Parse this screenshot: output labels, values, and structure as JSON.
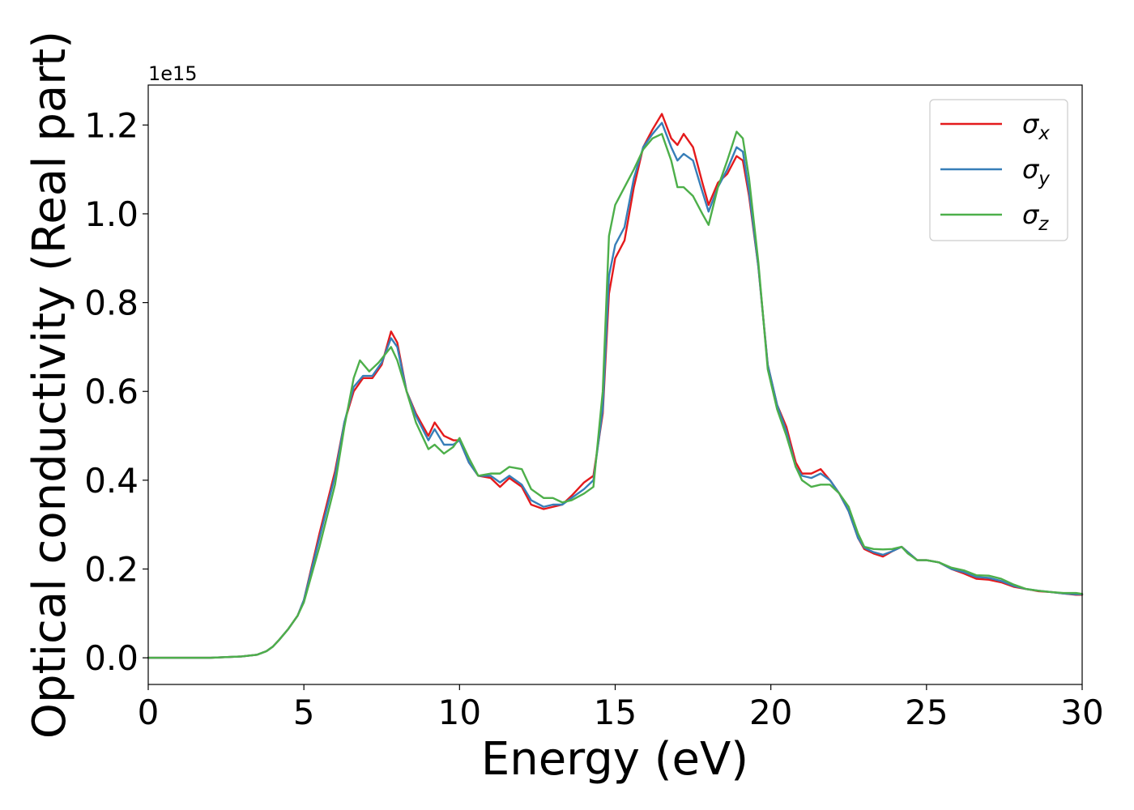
{
  "chart_data": {
    "type": "line",
    "xlabel": "Energy (eV)",
    "ylabel": "Optical conductivity (Real part)",
    "y_offset_label": "1e15",
    "xlim": [
      0,
      30
    ],
    "ylim": [
      -0.06,
      1.29
    ],
    "y_scale_factor": 1000000000000000.0,
    "x_ticks": [
      0,
      5,
      10,
      15,
      20,
      25,
      30
    ],
    "x_tick_labels": [
      "0",
      "5",
      "10",
      "15",
      "20",
      "25",
      "30"
    ],
    "y_ticks": [
      0.0,
      0.2,
      0.4,
      0.6,
      0.8,
      1.0,
      1.2
    ],
    "y_tick_labels": [
      "0.0",
      "0.2",
      "0.4",
      "0.6",
      "0.8",
      "1.0",
      "1.2"
    ],
    "grid": false,
    "legend_position": "top-right",
    "series": [
      {
        "name": "σx",
        "legend_base": "σ",
        "legend_sub": "x",
        "color": "#e41a1c",
        "x": [
          0,
          1,
          2,
          3,
          3.5,
          3.8,
          4.0,
          4.2,
          4.5,
          4.8,
          5.0,
          5.5,
          6.0,
          6.3,
          6.6,
          6.9,
          7.2,
          7.5,
          7.8,
          8.0,
          8.3,
          8.6,
          9.0,
          9.2,
          9.5,
          9.8,
          10.0,
          10.3,
          10.6,
          11.0,
          11.3,
          11.6,
          12.0,
          12.3,
          12.7,
          13.0,
          13.3,
          13.6,
          14.0,
          14.3,
          14.6,
          14.8,
          15.0,
          15.3,
          15.6,
          15.9,
          16.2,
          16.5,
          16.8,
          17.0,
          17.2,
          17.5,
          17.8,
          18.0,
          18.3,
          18.6,
          18.9,
          19.1,
          19.3,
          19.6,
          19.9,
          20.2,
          20.5,
          20.8,
          21.0,
          21.3,
          21.6,
          21.9,
          22.2,
          22.5,
          22.8,
          23.0,
          23.3,
          23.6,
          23.9,
          24.2,
          24.4,
          24.7,
          25.0,
          25.4,
          25.8,
          26.2,
          26.6,
          27.0,
          27.4,
          27.8,
          28.2,
          28.6,
          29.0,
          29.4,
          29.8,
          30.0
        ],
        "y": [
          0.0,
          0.0,
          0.0,
          0.003,
          0.007,
          0.015,
          0.025,
          0.04,
          0.065,
          0.095,
          0.13,
          0.28,
          0.42,
          0.53,
          0.6,
          0.63,
          0.63,
          0.66,
          0.735,
          0.71,
          0.6,
          0.55,
          0.5,
          0.53,
          0.5,
          0.49,
          0.49,
          0.44,
          0.41,
          0.405,
          0.385,
          0.405,
          0.385,
          0.345,
          0.335,
          0.34,
          0.345,
          0.365,
          0.395,
          0.41,
          0.55,
          0.82,
          0.9,
          0.94,
          1.06,
          1.15,
          1.19,
          1.225,
          1.17,
          1.155,
          1.18,
          1.15,
          1.07,
          1.02,
          1.07,
          1.09,
          1.13,
          1.12,
          1.04,
          0.88,
          0.66,
          0.57,
          0.52,
          0.44,
          0.415,
          0.415,
          0.425,
          0.4,
          0.37,
          0.33,
          0.27,
          0.245,
          0.235,
          0.228,
          0.24,
          0.25,
          0.238,
          0.22,
          0.22,
          0.215,
          0.2,
          0.19,
          0.178,
          0.176,
          0.17,
          0.16,
          0.155,
          0.15,
          0.148,
          0.145,
          0.142,
          0.142
        ]
      },
      {
        "name": "σy",
        "legend_base": "σ",
        "legend_sub": "y",
        "color": "#377eb8",
        "x": [
          0,
          1,
          2,
          3,
          3.5,
          3.8,
          4.0,
          4.2,
          4.5,
          4.8,
          5.0,
          5.5,
          6.0,
          6.3,
          6.6,
          6.9,
          7.2,
          7.5,
          7.8,
          8.0,
          8.3,
          8.6,
          9.0,
          9.2,
          9.5,
          9.8,
          10.0,
          10.3,
          10.6,
          11.0,
          11.3,
          11.6,
          12.0,
          12.3,
          12.7,
          13.0,
          13.3,
          13.6,
          14.0,
          14.3,
          14.6,
          14.8,
          15.0,
          15.3,
          15.6,
          15.9,
          16.2,
          16.5,
          16.8,
          17.0,
          17.2,
          17.5,
          17.8,
          18.0,
          18.3,
          18.6,
          18.9,
          19.1,
          19.3,
          19.6,
          19.9,
          20.2,
          20.5,
          20.8,
          21.0,
          21.3,
          21.6,
          21.9,
          22.2,
          22.5,
          22.8,
          23.0,
          23.3,
          23.6,
          23.9,
          24.2,
          24.4,
          24.7,
          25.0,
          25.4,
          25.8,
          26.2,
          26.6,
          27.0,
          27.4,
          27.8,
          28.2,
          28.6,
          29.0,
          29.4,
          29.8,
          30.0
        ],
        "y": [
          0.0,
          0.0,
          0.0,
          0.003,
          0.007,
          0.015,
          0.025,
          0.04,
          0.065,
          0.095,
          0.13,
          0.27,
          0.41,
          0.53,
          0.61,
          0.635,
          0.635,
          0.665,
          0.72,
          0.7,
          0.6,
          0.545,
          0.49,
          0.515,
          0.48,
          0.48,
          0.49,
          0.44,
          0.41,
          0.41,
          0.395,
          0.41,
          0.39,
          0.355,
          0.34,
          0.345,
          0.345,
          0.36,
          0.38,
          0.4,
          0.56,
          0.86,
          0.93,
          0.97,
          1.08,
          1.15,
          1.18,
          1.205,
          1.15,
          1.12,
          1.135,
          1.12,
          1.05,
          1.005,
          1.06,
          1.1,
          1.15,
          1.14,
          1.05,
          0.88,
          0.66,
          0.57,
          0.51,
          0.43,
          0.41,
          0.405,
          0.415,
          0.4,
          0.37,
          0.33,
          0.27,
          0.248,
          0.238,
          0.232,
          0.24,
          0.25,
          0.238,
          0.22,
          0.22,
          0.215,
          0.2,
          0.193,
          0.182,
          0.18,
          0.173,
          0.162,
          0.155,
          0.151,
          0.148,
          0.145,
          0.143,
          0.143
        ]
      },
      {
        "name": "σz",
        "legend_base": "σ",
        "legend_sub": "z",
        "color": "#4daf4a",
        "x": [
          0,
          1,
          2,
          3,
          3.5,
          3.8,
          4.0,
          4.2,
          4.5,
          4.8,
          5.0,
          5.5,
          6.0,
          6.3,
          6.6,
          6.8,
          7.1,
          7.4,
          7.8,
          8.0,
          8.3,
          8.6,
          9.0,
          9.2,
          9.5,
          9.8,
          10.0,
          10.3,
          10.6,
          11.0,
          11.3,
          11.6,
          12.0,
          12.3,
          12.7,
          13.0,
          13.3,
          13.6,
          14.0,
          14.3,
          14.6,
          14.8,
          15.0,
          15.3,
          15.6,
          15.9,
          16.2,
          16.5,
          16.8,
          17.0,
          17.2,
          17.5,
          17.8,
          18.0,
          18.3,
          18.6,
          18.9,
          19.1,
          19.3,
          19.6,
          19.9,
          20.2,
          20.5,
          20.8,
          21.0,
          21.3,
          21.6,
          21.9,
          22.2,
          22.5,
          22.8,
          23.0,
          23.3,
          23.6,
          23.9,
          24.2,
          24.4,
          24.7,
          25.0,
          25.4,
          25.8,
          26.2,
          26.6,
          27.0,
          27.4,
          27.8,
          28.2,
          28.6,
          29.0,
          29.4,
          29.8,
          30.0
        ],
        "y": [
          0.0,
          0.0,
          0.0,
          0.003,
          0.007,
          0.015,
          0.025,
          0.04,
          0.065,
          0.095,
          0.125,
          0.25,
          0.39,
          0.52,
          0.63,
          0.67,
          0.645,
          0.665,
          0.7,
          0.67,
          0.6,
          0.53,
          0.47,
          0.48,
          0.46,
          0.475,
          0.495,
          0.45,
          0.41,
          0.415,
          0.415,
          0.43,
          0.425,
          0.38,
          0.36,
          0.36,
          0.35,
          0.355,
          0.37,
          0.385,
          0.6,
          0.95,
          1.02,
          1.06,
          1.1,
          1.145,
          1.17,
          1.18,
          1.12,
          1.06,
          1.06,
          1.04,
          1.0,
          0.975,
          1.06,
          1.12,
          1.185,
          1.17,
          1.08,
          0.89,
          0.65,
          0.56,
          0.5,
          0.43,
          0.4,
          0.385,
          0.39,
          0.39,
          0.37,
          0.34,
          0.28,
          0.25,
          0.245,
          0.244,
          0.245,
          0.25,
          0.235,
          0.22,
          0.22,
          0.215,
          0.203,
          0.197,
          0.186,
          0.185,
          0.178,
          0.165,
          0.155,
          0.151,
          0.148,
          0.146,
          0.146,
          0.144
        ]
      }
    ]
  }
}
